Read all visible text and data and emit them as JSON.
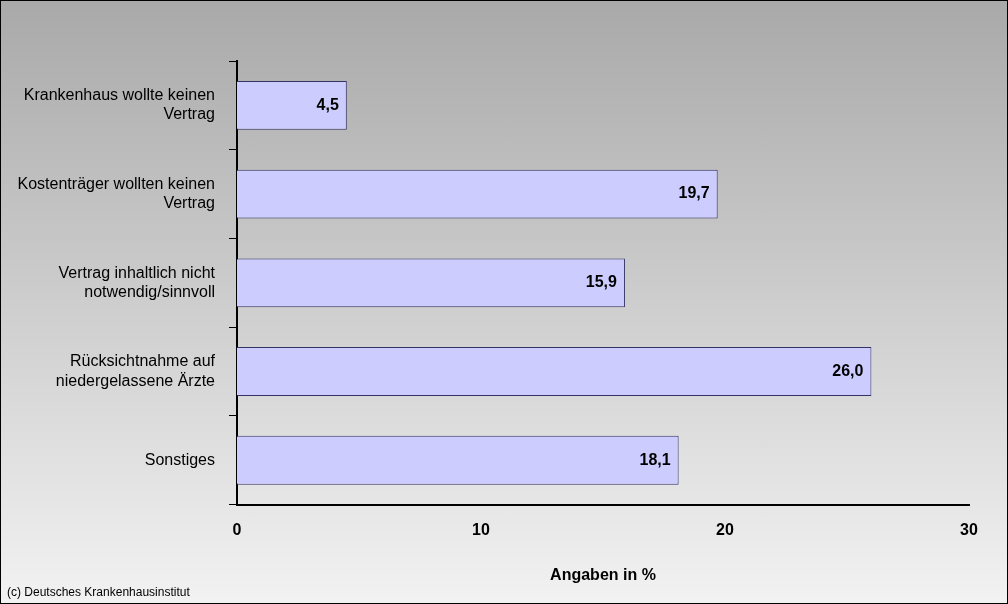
{
  "chart_data": {
    "type": "bar",
    "orientation": "horizontal",
    "xlabel": "Angaben in %",
    "categories": [
      "Krankenhaus wollte keinen Vertrag",
      "Kostenträger wollten keinen Vertrag",
      "Vertrag inhaltlich nicht notwendig/sinnvoll",
      "Rücksichtnahme auf niedergelassene Ärzte",
      "Sonstiges"
    ],
    "values": [
      4.5,
      19.7,
      15.9,
      26.0,
      18.1
    ],
    "value_labels": [
      "4,5",
      "19,7",
      "15,9",
      "26,0",
      "18,1"
    ],
    "color": "#ccccff",
    "xlim": [
      0,
      30
    ],
    "xticks": [
      0,
      10,
      20,
      30
    ],
    "grid": false,
    "legend": false,
    "annotations": [
      "(c) Deutsches Krankenhausinstitut"
    ]
  }
}
